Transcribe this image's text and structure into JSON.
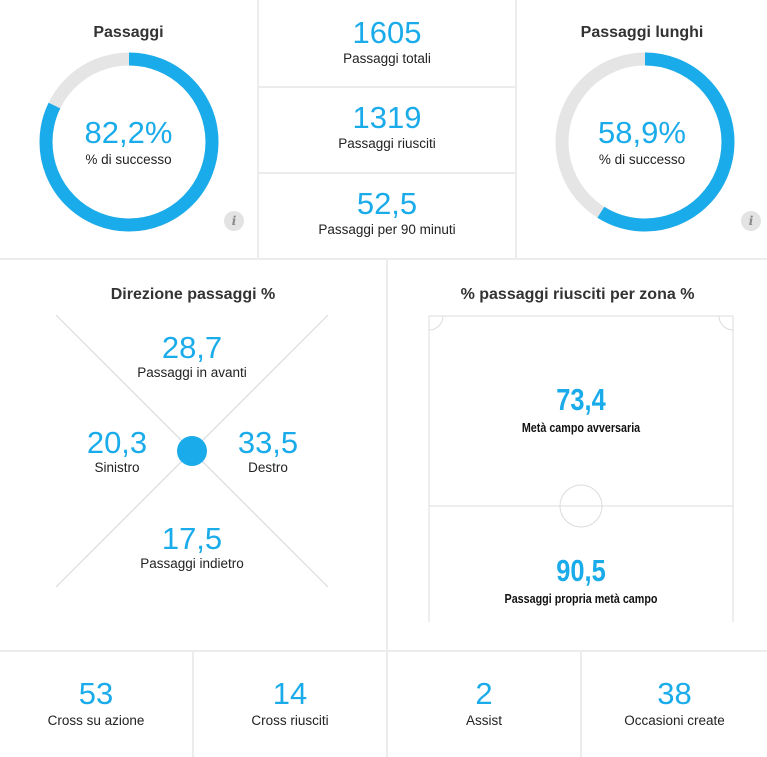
{
  "passes": {
    "title": "Passaggi",
    "success_pct": 82.2,
    "success_text": "82,2%",
    "success_label": "% di successo"
  },
  "totals": {
    "total_value": "1605",
    "total_label": "Passaggi totali",
    "completed_value": "1319",
    "completed_label": "Passaggi riusciti",
    "per90_value": "52,5",
    "per90_label": "Passaggi per 90 minuti"
  },
  "long_passes": {
    "title": "Passaggi lunghi",
    "success_pct": 58.9,
    "success_text": "58,9%",
    "success_label": "% di successo"
  },
  "info_icon_glyph": "i",
  "direction": {
    "title": "Direzione passaggi %",
    "forward_value": "28,7",
    "forward_label": "Passaggi in avanti",
    "left_value": "20,3",
    "left_label": "Sinistro",
    "right_value": "33,5",
    "right_label": "Destro",
    "backward_value": "17,5",
    "backward_label": "Passaggi indietro"
  },
  "zones": {
    "title": "% passaggi riusciti per zona %",
    "opp_value": "73,4",
    "opp_label": "Metà campo avversaria",
    "own_value": "90,5",
    "own_label": "Passaggi propria metà campo"
  },
  "bottom": [
    {
      "value": "53",
      "label": "Cross su azione"
    },
    {
      "value": "14",
      "label": "Cross riusciti"
    },
    {
      "value": "2",
      "label": "Assist"
    },
    {
      "value": "38",
      "label": "Occasioni create"
    }
  ],
  "colors": {
    "accent": "#1aabea",
    "track": "#e5e5e5",
    "divider": "#ececec"
  }
}
